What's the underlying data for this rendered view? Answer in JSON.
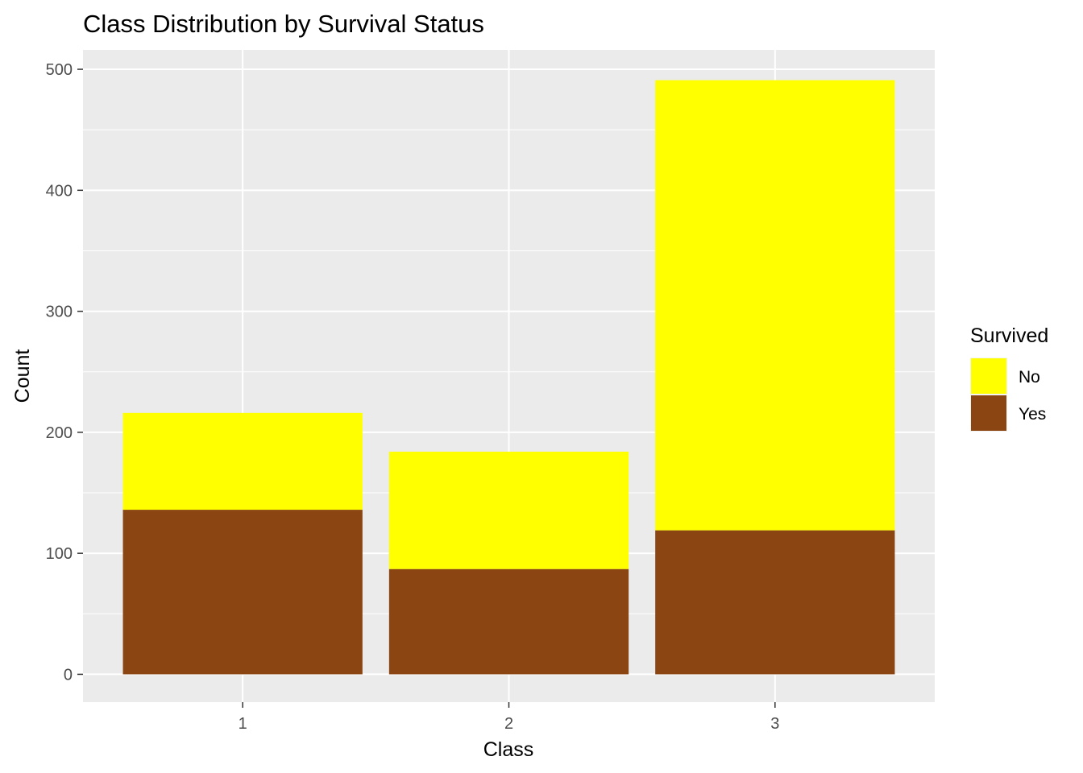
{
  "chart_data": {
    "type": "bar",
    "stacked": true,
    "title": "Class Distribution by Survival Status",
    "xlabel": "Class",
    "ylabel": "Count",
    "categories": [
      "1",
      "2",
      "3"
    ],
    "series": [
      {
        "name": "No",
        "values": [
          80,
          97,
          372
        ],
        "color": "#FFFF00"
      },
      {
        "name": "Yes",
        "values": [
          136,
          87,
          119
        ],
        "color": "#8B4513"
      }
    ],
    "ylim": [
      -23,
      516
    ],
    "yticks": [
      0,
      100,
      200,
      300,
      400,
      500
    ],
    "ytick_labels": [
      "0",
      "100",
      "200",
      "300",
      "400",
      "500"
    ],
    "grid": true,
    "panel_background": "#EBEBEB",
    "legend": {
      "title": "Survived",
      "placement": "right",
      "entries": [
        "No",
        "Yes"
      ]
    }
  }
}
